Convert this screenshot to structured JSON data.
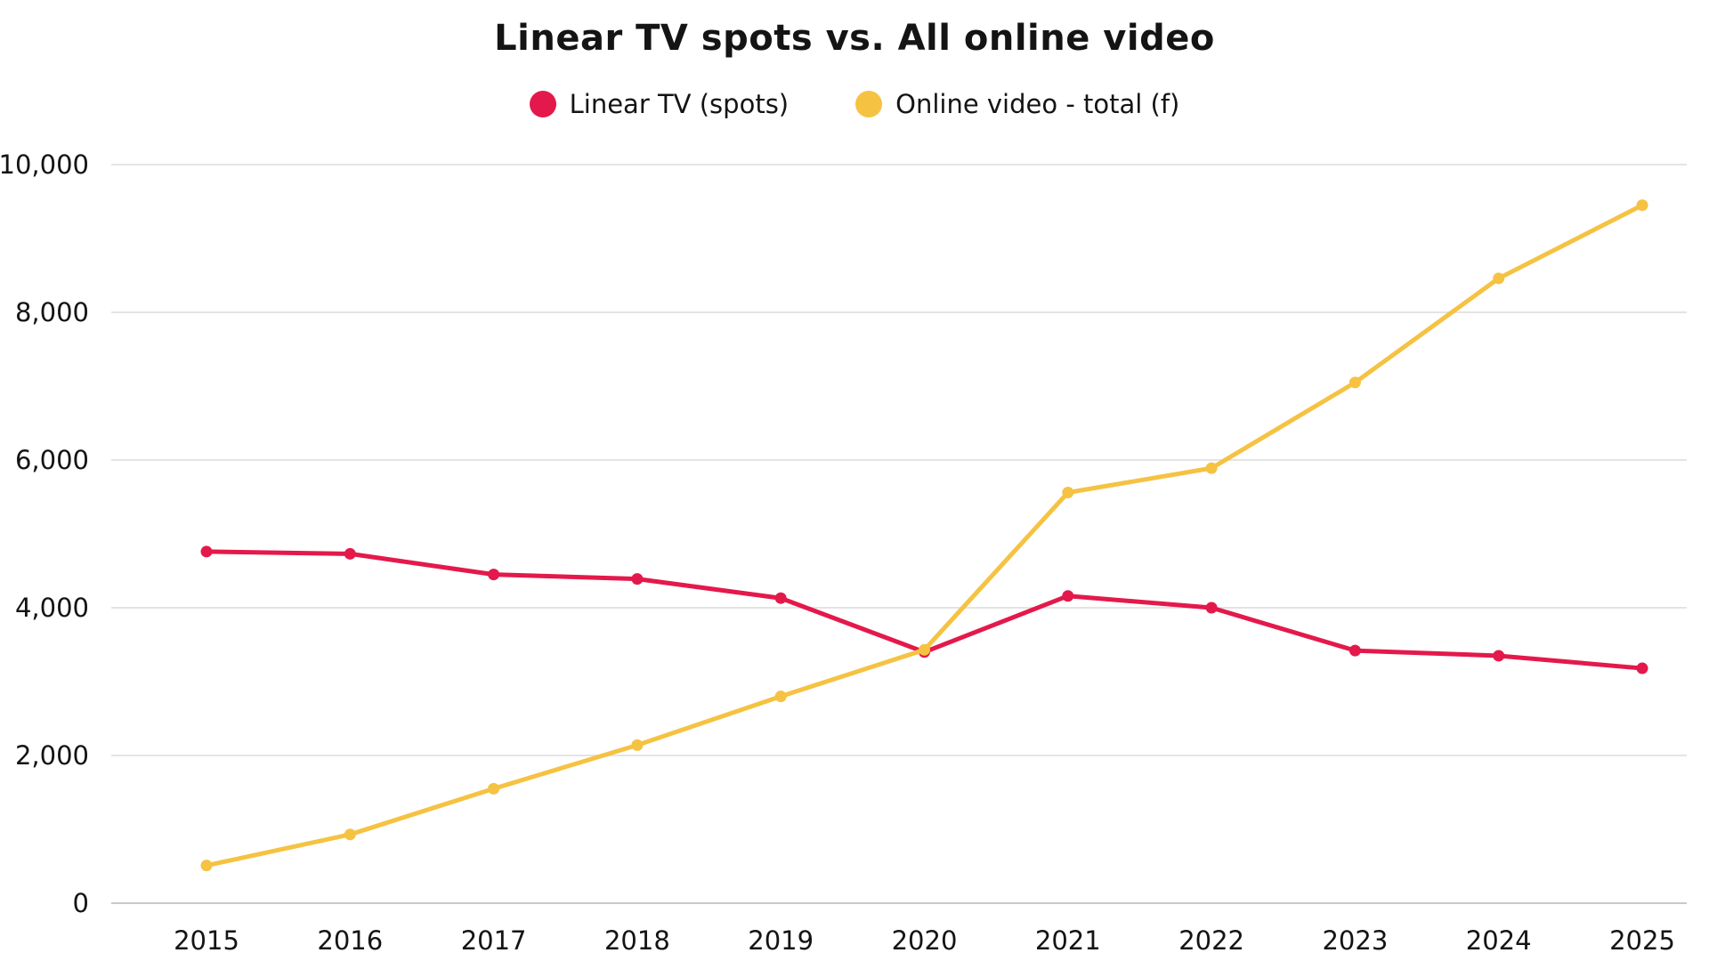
{
  "title": "Linear TV spots vs. All online video",
  "colors": {
    "background": "#ffffff",
    "gridline": "#e4e4e4",
    "baseline": "#c9c9c9",
    "text": "#141414"
  },
  "chart_data": {
    "type": "line",
    "title": "Linear TV spots vs. All online video",
    "x_labels": [
      "2015",
      "2016",
      "2017",
      "2018",
      "2019",
      "2020",
      "2021",
      "2022",
      "2023",
      "2024",
      "2025"
    ],
    "series": [
      {
        "name": "Linear TV (spots)",
        "color": "#e4194b",
        "values": [
          4760,
          4730,
          4450,
          4390,
          4130,
          3400,
          4160,
          4000,
          3420,
          3350,
          3180
        ]
      },
      {
        "name": "Online video - total (f)",
        "color": "#f5c242",
        "values": [
          510,
          930,
          1550,
          2140,
          2800,
          3430,
          5560,
          5890,
          7050,
          8460,
          9450
        ]
      }
    ],
    "ylim": [
      0,
      10000
    ],
    "yticks": [
      0,
      2000,
      4000,
      6000,
      8000,
      10000
    ],
    "ytick_labels": [
      "0",
      "2,000",
      "4,000",
      "6,000",
      "8,000",
      "10,000"
    ],
    "grid": true,
    "legend_position": "top"
  }
}
